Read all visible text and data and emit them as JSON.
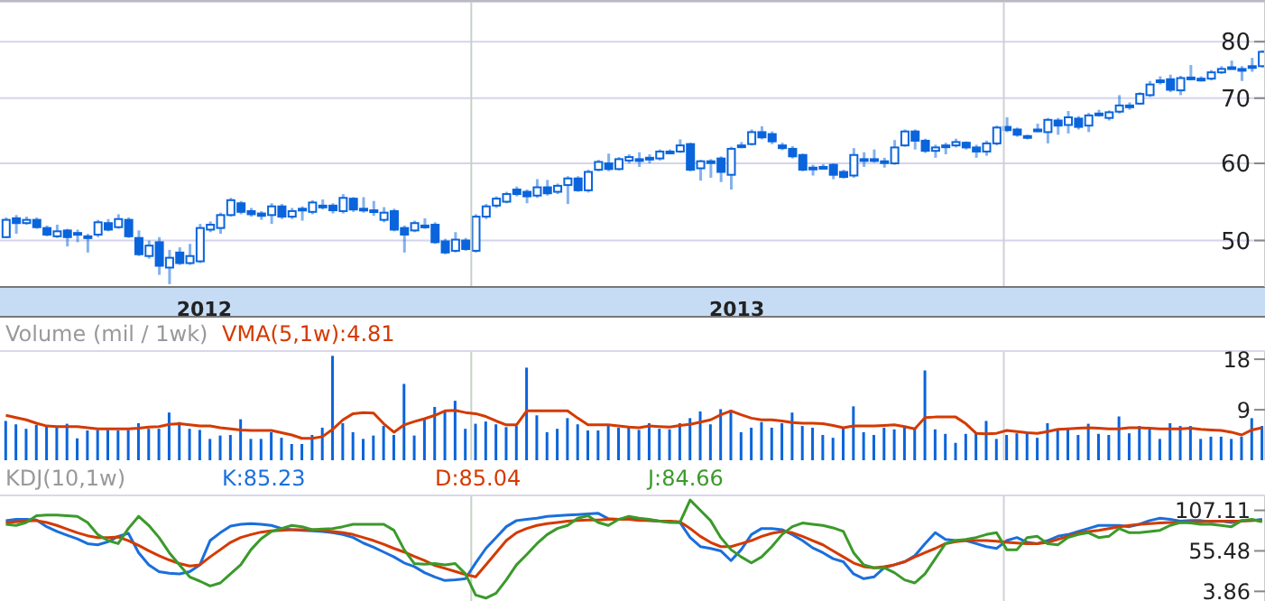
{
  "chart_data": [
    {
      "type": "candlestick",
      "color": "#0a64dc",
      "log": "y",
      "ylim": [
        44.8,
        87.9
      ],
      "yticks": [
        50,
        60,
        70,
        80
      ],
      "xlim": [
        "2012-02-13",
        "2014-06-29"
      ],
      "xticks": [
        {
          "value": "2012-07-02",
          "label": "2012"
        },
        {
          "value": "2013-07-02",
          "label": "2013"
        }
      ],
      "grid": "y",
      "ref_lines": [
        {
          "axis": "x",
          "value": "2013-01-01",
          "label": null,
          "color": "#c8d0c8"
        },
        {
          "axis": "x",
          "value": "2014-01-01",
          "label": null,
          "color": "#d0d0d8"
        }
      ],
      "x": [
        "2012-02-17",
        "2012-02-24",
        "2012-03-02",
        "2012-03-09",
        "2012-03-16",
        "2012-03-23",
        "2012-03-30",
        "2012-04-06",
        "2012-04-13",
        "2012-04-20",
        "2012-04-27",
        "2012-05-04",
        "2012-05-11",
        "2012-05-18",
        "2012-05-25",
        "2012-06-01",
        "2012-06-08",
        "2012-06-15",
        "2012-06-22",
        "2012-06-29",
        "2012-07-06",
        "2012-07-13",
        "2012-07-20",
        "2012-07-27",
        "2012-08-03",
        "2012-08-10",
        "2012-08-17",
        "2012-08-24",
        "2012-08-31",
        "2012-09-07",
        "2012-09-14",
        "2012-09-21",
        "2012-09-28",
        "2012-10-05",
        "2012-10-12",
        "2012-10-19",
        "2012-10-26",
        "2012-11-02",
        "2012-11-09",
        "2012-11-16",
        "2012-11-23",
        "2012-11-30",
        "2012-12-07",
        "2012-12-14",
        "2012-12-21",
        "2012-12-28",
        "2013-01-04",
        "2013-01-11",
        "2013-01-18",
        "2013-01-25",
        "2013-02-01",
        "2013-02-08",
        "2013-02-15",
        "2013-02-22",
        "2013-03-01",
        "2013-03-08",
        "2013-03-15",
        "2013-03-22",
        "2013-03-29",
        "2013-04-05",
        "2013-04-12",
        "2013-04-19",
        "2013-04-26",
        "2013-05-03",
        "2013-05-10",
        "2013-05-17",
        "2013-05-24",
        "2013-05-31",
        "2013-06-07",
        "2013-06-14",
        "2013-06-21",
        "2013-06-28",
        "2013-07-05",
        "2013-07-12",
        "2013-07-19",
        "2013-07-26",
        "2013-08-02",
        "2013-08-09",
        "2013-08-16",
        "2013-08-23",
        "2013-08-30",
        "2013-09-06",
        "2013-09-13",
        "2013-09-20",
        "2013-09-27",
        "2013-10-04",
        "2013-10-11",
        "2013-10-18",
        "2013-10-25",
        "2013-11-01",
        "2013-11-08",
        "2013-11-15",
        "2013-11-22",
        "2013-11-29",
        "2013-12-06",
        "2013-12-13",
        "2013-12-20",
        "2013-12-27",
        "2014-01-03",
        "2014-01-10",
        "2014-01-17",
        "2014-01-24",
        "2014-01-31",
        "2014-02-07",
        "2014-02-14",
        "2014-02-21",
        "2014-02-28",
        "2014-03-07",
        "2014-03-14",
        "2014-03-21",
        "2014-03-28",
        "2014-04-04",
        "2014-04-11",
        "2014-04-18",
        "2014-04-25",
        "2014-05-02",
        "2014-05-09",
        "2014-05-16",
        "2014-05-23",
        "2014-05-30",
        "2014-06-06",
        "2014-06-13",
        "2014-06-20",
        "2014-06-27"
      ],
      "ohlc": [
        [
          50.4,
          52.8,
          50.3,
          52.5
        ],
        [
          52.7,
          53.1,
          50.8,
          52.1
        ],
        [
          52.1,
          52.9,
          51.9,
          52.5
        ],
        [
          52.5,
          52.8,
          51.4,
          51.6
        ],
        [
          51.5,
          51.8,
          50.5,
          50.7
        ],
        [
          50.5,
          51.9,
          50.3,
          51.1
        ],
        [
          51.2,
          51.4,
          49.3,
          50.4
        ],
        [
          50.8,
          51.3,
          49.8,
          50.9
        ],
        [
          50.5,
          50.8,
          48.6,
          50.3
        ],
        [
          50.7,
          52.5,
          50.4,
          52.2
        ],
        [
          52.1,
          52.6,
          51.1,
          51.3
        ],
        [
          51.6,
          53.2,
          51.4,
          52.6
        ],
        [
          52.5,
          52.8,
          50.3,
          50.5
        ],
        [
          50.3,
          51.2,
          48.2,
          48.4
        ],
        [
          48.2,
          50.0,
          47.9,
          49.4
        ],
        [
          49.8,
          50.4,
          46.1,
          47.1
        ],
        [
          46.9,
          48.9,
          45.1,
          48.0
        ],
        [
          48.6,
          49.2,
          47.2,
          47.4
        ],
        [
          47.4,
          49.6,
          47.2,
          48.2
        ],
        [
          47.6,
          52.0,
          47.4,
          51.5
        ],
        [
          51.3,
          52.3,
          51.0,
          51.9
        ],
        [
          51.5,
          53.4,
          50.8,
          53.1
        ],
        [
          53.1,
          55.3,
          52.9,
          55.0
        ],
        [
          54.6,
          54.9,
          53.2,
          53.5
        ],
        [
          53.6,
          54.0,
          52.9,
          53.2
        ],
        [
          53.3,
          53.6,
          52.5,
          53.0
        ],
        [
          53.1,
          54.6,
          52.0,
          54.2
        ],
        [
          54.2,
          54.5,
          52.6,
          52.9
        ],
        [
          52.9,
          54.0,
          52.6,
          53.6
        ],
        [
          53.8,
          54.2,
          52.4,
          53.9
        ],
        [
          53.5,
          55.0,
          53.2,
          54.7
        ],
        [
          54.3,
          55.1,
          53.8,
          54.1
        ],
        [
          54.3,
          54.6,
          53.3,
          53.7
        ],
        [
          53.6,
          55.8,
          53.3,
          55.3
        ],
        [
          55.2,
          55.4,
          53.5,
          53.8
        ],
        [
          53.8,
          55.4,
          53.4,
          53.9
        ],
        [
          53.6,
          54.9,
          53.0,
          53.7
        ],
        [
          52.5,
          54.1,
          52.2,
          53.4
        ],
        [
          53.6,
          53.9,
          51.1,
          51.3
        ],
        [
          51.5,
          51.8,
          48.6,
          50.7
        ],
        [
          51.2,
          52.4,
          51.0,
          52.1
        ],
        [
          51.8,
          52.7,
          51.4,
          51.7
        ],
        [
          51.9,
          52.2,
          49.6,
          49.8
        ],
        [
          49.9,
          50.2,
          48.4,
          48.6
        ],
        [
          48.8,
          51.0,
          48.6,
          50.1
        ],
        [
          50.0,
          50.3,
          48.8,
          49.0
        ],
        [
          48.8,
          53.2,
          48.6,
          52.9
        ],
        [
          52.9,
          54.5,
          52.6,
          54.2
        ],
        [
          54.3,
          55.5,
          54.0,
          55.2
        ],
        [
          54.8,
          56.1,
          54.6,
          55.8
        ],
        [
          56.4,
          56.8,
          55.5,
          55.8
        ],
        [
          56.1,
          56.4,
          54.6,
          55.5
        ],
        [
          55.6,
          57.8,
          55.3,
          56.7
        ],
        [
          56.7,
          57.7,
          55.6,
          55.9
        ],
        [
          56.1,
          57.2,
          55.8,
          56.9
        ],
        [
          57.0,
          58.2,
          54.5,
          57.9
        ],
        [
          57.9,
          58.2,
          56.1,
          56.3
        ],
        [
          56.3,
          59.1,
          56.0,
          58.8
        ],
        [
          59.1,
          60.5,
          58.9,
          60.2
        ],
        [
          60.0,
          61.4,
          58.9,
          59.2
        ],
        [
          59.2,
          60.9,
          59.0,
          60.6
        ],
        [
          60.4,
          61.3,
          60.0,
          60.9
        ],
        [
          60.4,
          61.6,
          59.5,
          60.6
        ],
        [
          60.7,
          61.3,
          60.0,
          60.8
        ],
        [
          60.7,
          62.0,
          60.4,
          61.7
        ],
        [
          61.6,
          62.0,
          61.3,
          61.7
        ],
        [
          61.7,
          63.5,
          61.5,
          62.6
        ],
        [
          62.8,
          63.0,
          58.9,
          59.1
        ],
        [
          59.3,
          60.5,
          57.6,
          60.3
        ],
        [
          60.2,
          60.6,
          58.0,
          60.3
        ],
        [
          60.7,
          61.0,
          57.4,
          58.8
        ],
        [
          58.4,
          62.4,
          56.4,
          62.1
        ],
        [
          62.5,
          63.1,
          62.2,
          62.6
        ],
        [
          62.8,
          65.0,
          62.6,
          64.6
        ],
        [
          64.6,
          65.5,
          63.5,
          63.8
        ],
        [
          64.3,
          64.7,
          62.8,
          63.2
        ],
        [
          62.6,
          63.0,
          61.9,
          62.2
        ],
        [
          62.1,
          62.5,
          60.7,
          61.0
        ],
        [
          61.2,
          61.4,
          58.9,
          59.1
        ],
        [
          59.4,
          59.8,
          58.3,
          59.3
        ],
        [
          59.5,
          59.9,
          59.2,
          59.4
        ],
        [
          59.8,
          60.0,
          57.8,
          58.4
        ],
        [
          58.8,
          59.1,
          57.9,
          58.1
        ],
        [
          58.3,
          62.2,
          58.0,
          61.2
        ],
        [
          60.6,
          61.6,
          59.5,
          60.5
        ],
        [
          60.4,
          62.0,
          60.1,
          60.6
        ],
        [
          60.3,
          60.8,
          59.4,
          60.3
        ],
        [
          60.0,
          63.4,
          59.8,
          62.3
        ],
        [
          62.6,
          65.0,
          62.4,
          64.7
        ],
        [
          64.7,
          65.0,
          62.0,
          63.3
        ],
        [
          63.3,
          63.6,
          61.5,
          61.8
        ],
        [
          61.8,
          62.7,
          60.8,
          62.3
        ],
        [
          62.5,
          63.0,
          61.3,
          62.6
        ],
        [
          62.6,
          63.6,
          62.3,
          63.1
        ],
        [
          63.0,
          63.2,
          62.0,
          62.3
        ],
        [
          62.3,
          62.7,
          60.8,
          61.7
        ],
        [
          61.7,
          63.3,
          61.1,
          62.9
        ],
        [
          62.9,
          65.6,
          62.6,
          65.3
        ],
        [
          65.4,
          66.9,
          64.6,
          64.9
        ],
        [
          65.0,
          65.3,
          63.9,
          64.2
        ],
        [
          64.0,
          64.2,
          63.5,
          63.9
        ],
        [
          64.9,
          65.9,
          64.6,
          65.0
        ],
        [
          64.6,
          66.8,
          62.9,
          66.5
        ],
        [
          66.4,
          66.8,
          64.2,
          65.6
        ],
        [
          65.7,
          67.9,
          64.4,
          66.9
        ],
        [
          66.7,
          67.1,
          65.0,
          65.4
        ],
        [
          65.6,
          67.6,
          64.6,
          67.2
        ],
        [
          67.3,
          68.1,
          67.0,
          67.5
        ],
        [
          66.8,
          68.0,
          66.4,
          67.7
        ],
        [
          67.8,
          70.5,
          67.5,
          68.8
        ],
        [
          68.7,
          69.3,
          68.1,
          68.8
        ],
        [
          69.1,
          71.0,
          68.9,
          70.7
        ],
        [
          70.5,
          72.9,
          70.2,
          72.3
        ],
        [
          72.9,
          73.7,
          72.3,
          73.0
        ],
        [
          73.2,
          74.0,
          71.0,
          71.4
        ],
        [
          71.3,
          73.8,
          70.5,
          73.4
        ],
        [
          73.4,
          75.7,
          73.0,
          73.5
        ],
        [
          73.2,
          73.7,
          72.8,
          73.3
        ],
        [
          73.3,
          74.8,
          73.0,
          74.4
        ],
        [
          74.4,
          75.5,
          74.1,
          75.0
        ],
        [
          75.2,
          76.5,
          74.9,
          75.3
        ],
        [
          75.0,
          75.5,
          72.9,
          74.9
        ],
        [
          75.4,
          77.0,
          74.5,
          75.5
        ],
        [
          75.5,
          78.4,
          75.2,
          78.1
        ]
      ]
    },
    {
      "type": "bar",
      "ylabel": "Volume (mil / 1wk)",
      "legend": "top left",
      "tick_labels": "y",
      "ylim": [
        0,
        19.3
      ],
      "yticks": [
        9,
        18
      ],
      "xlim": [
        "2012-02-13",
        "2014-06-29"
      ],
      "ref_lines": [
        {
          "axis": "x",
          "value": "2013-01-01",
          "label": null,
          "color": "#c8d0c8"
        },
        {
          "axis": "x",
          "value": "2014-01-01",
          "label": null,
          "color": "#d0d0d8"
        }
      ],
      "x": [
        "2012-02-17",
        "2012-02-24",
        "2012-03-02",
        "2012-03-09",
        "2012-03-16",
        "2012-03-23",
        "2012-03-30",
        "2012-04-06",
        "2012-04-13",
        "2012-04-20",
        "2012-04-27",
        "2012-05-04",
        "2012-05-11",
        "2012-05-18",
        "2012-05-25",
        "2012-06-01",
        "2012-06-08",
        "2012-06-15",
        "2012-06-22",
        "2012-06-29",
        "2012-07-06",
        "2012-07-13",
        "2012-07-20",
        "2012-07-27",
        "2012-08-03",
        "2012-08-10",
        "2012-08-17",
        "2012-08-24",
        "2012-08-31",
        "2012-09-07",
        "2012-09-14",
        "2012-09-21",
        "2012-09-28",
        "2012-10-05",
        "2012-10-12",
        "2012-10-19",
        "2012-10-26",
        "2012-11-02",
        "2012-11-09",
        "2012-11-16",
        "2012-11-23",
        "2012-11-30",
        "2012-12-07",
        "2012-12-14",
        "2012-12-21",
        "2012-12-28",
        "2013-01-04",
        "2013-01-11",
        "2013-01-18",
        "2013-01-25",
        "2013-02-01",
        "2013-02-08",
        "2013-02-15",
        "2013-02-22",
        "2013-03-01",
        "2013-03-08",
        "2013-03-15",
        "2013-03-22",
        "2013-03-29",
        "2013-04-05",
        "2013-04-12",
        "2013-04-19",
        "2013-04-26",
        "2013-05-03",
        "2013-05-10",
        "2013-05-17",
        "2013-05-24",
        "2013-05-31",
        "2013-06-07",
        "2013-06-14",
        "2013-06-21",
        "2013-06-28",
        "2013-07-05",
        "2013-07-12",
        "2013-07-19",
        "2013-07-26",
        "2013-08-02",
        "2013-08-09",
        "2013-08-16",
        "2013-08-23",
        "2013-08-30",
        "2013-09-06",
        "2013-09-13",
        "2013-09-20",
        "2013-09-27",
        "2013-10-04",
        "2013-10-11",
        "2013-10-18",
        "2013-10-25",
        "2013-11-01",
        "2013-11-08",
        "2013-11-15",
        "2013-11-22",
        "2013-11-29",
        "2013-12-06",
        "2013-12-13",
        "2013-12-20",
        "2013-12-27",
        "2014-01-03",
        "2014-01-10",
        "2014-01-17",
        "2014-01-24",
        "2014-01-31",
        "2014-02-07",
        "2014-02-14",
        "2014-02-21",
        "2014-02-28",
        "2014-03-07",
        "2014-03-14",
        "2014-03-21",
        "2014-03-28",
        "2014-04-04",
        "2014-04-11",
        "2014-04-18",
        "2014-04-25",
        "2014-05-02",
        "2014-05-09",
        "2014-05-16",
        "2014-05-23",
        "2014-05-30",
        "2014-06-06",
        "2014-06-13",
        "2014-06-20",
        "2014-06-27"
      ],
      "series": [
        {
          "type": "bar",
          "color": "#0a64dc",
          "values": [
            7.0,
            6.4,
            5.6,
            6.3,
            6.1,
            6.1,
            6.5,
            3.9,
            5.3,
            5.4,
            5.4,
            5.3,
            5.4,
            6.6,
            5.6,
            5.6,
            8.5,
            6.8,
            5.6,
            5.4,
            3.8,
            4.4,
            4.5,
            7.3,
            3.8,
            3.8,
            5.0,
            4.0,
            2.9,
            2.9,
            4.5,
            5.8,
            18.6,
            6.6,
            5.0,
            3.8,
            4.4,
            6.1,
            4.5,
            13.6,
            4.4,
            7.4,
            9.5,
            8.8,
            10.6,
            5.6,
            6.5,
            6.9,
            6.4,
            5.9,
            6.1,
            16.5,
            8.0,
            5.0,
            5.6,
            7.5,
            6.4,
            5.3,
            5.3,
            6.3,
            5.8,
            5.8,
            5.4,
            6.6,
            5.6,
            5.5,
            6.6,
            7.5,
            8.7,
            6.4,
            9.1,
            9.0,
            5.0,
            5.8,
            6.8,
            5.8,
            6.6,
            8.5,
            6.1,
            5.8,
            4.5,
            4.0,
            5.8,
            9.6,
            5.0,
            4.5,
            5.8,
            5.5,
            6.1,
            5.5,
            16.0,
            5.5,
            4.7,
            3.1,
            4.7,
            5.0,
            7.0,
            3.8,
            4.5,
            4.8,
            4.8,
            4.0,
            6.6,
            5.5,
            5.8,
            4.5,
            6.5,
            4.7,
            4.5,
            7.8,
            4.8,
            6.1,
            5.6,
            3.8,
            6.6,
            6.1,
            6.1,
            3.8,
            4.2,
            4.2,
            3.8,
            4.2,
            7.5,
            6.1
          ]
        },
        {
          "type": "line",
          "name": "VMA(5,1w):4.81",
          "color": "#d43a00",
          "values": [
            8.0,
            7.6,
            7.2,
            6.6,
            6.1,
            6.0,
            6.0,
            6.0,
            5.8,
            5.6,
            5.6,
            5.6,
            5.6,
            5.7,
            5.9,
            6.0,
            6.4,
            6.5,
            6.3,
            6.1,
            6.1,
            5.8,
            5.6,
            5.4,
            5.3,
            5.3,
            5.3,
            4.9,
            4.5,
            3.9,
            3.9,
            4.2,
            5.5,
            7.2,
            8.3,
            8.5,
            8.4,
            6.5,
            5.0,
            6.3,
            6.9,
            7.4,
            8.0,
            8.8,
            8.9,
            8.5,
            8.3,
            7.8,
            7.0,
            6.3,
            6.3,
            8.8,
            8.8,
            8.8,
            8.8,
            8.8,
            7.5,
            6.3,
            6.3,
            6.3,
            6.1,
            5.9,
            5.8,
            6.1,
            6.0,
            5.9,
            6.2,
            6.4,
            6.8,
            7.2,
            8.1,
            8.8,
            8.1,
            7.5,
            7.2,
            7.2,
            7.0,
            6.7,
            6.6,
            6.6,
            6.5,
            6.2,
            5.8,
            6.1,
            6.1,
            6.1,
            6.2,
            6.3,
            6.0,
            5.6,
            7.6,
            7.7,
            7.7,
            7.7,
            6.5,
            4.8,
            4.7,
            4.8,
            5.3,
            5.1,
            4.9,
            4.8,
            5.1,
            5.5,
            5.6,
            5.7,
            5.8,
            5.7,
            5.6,
            5.6,
            5.8,
            5.8,
            5.7,
            5.6,
            5.6,
            5.6,
            5.7,
            5.5,
            5.4,
            5.3,
            5.0,
            4.5,
            5.4,
            5.8
          ]
        }
      ]
    },
    {
      "type": "line",
      "title": "KDJ(10,1w)",
      "legend": "top left",
      "tick_labels": "y",
      "ylim": [
        -10.7,
        125
      ],
      "yticks": [
        3.86,
        55.48,
        107.11
      ],
      "xlim": [
        "2012-02-13",
        "2014-06-29"
      ],
      "ref_lines": [
        {
          "axis": "x",
          "value": "2013-01-01",
          "label": null,
          "color": "#c8d0c8"
        },
        {
          "axis": "x",
          "value": "2014-01-01",
          "label": null,
          "color": "#d0d0d8"
        }
      ],
      "x": [
        "2012-02-17",
        "2012-02-24",
        "2012-03-02",
        "2012-03-09",
        "2012-03-16",
        "2012-03-23",
        "2012-03-30",
        "2012-04-06",
        "2012-04-13",
        "2012-04-20",
        "2012-04-27",
        "2012-05-04",
        "2012-05-11",
        "2012-05-18",
        "2012-05-25",
        "2012-06-01",
        "2012-06-08",
        "2012-06-15",
        "2012-06-22",
        "2012-06-29",
        "2012-07-06",
        "2012-07-13",
        "2012-07-20",
        "2012-07-27",
        "2012-08-03",
        "2012-08-10",
        "2012-08-17",
        "2012-08-24",
        "2012-08-31",
        "2012-09-07",
        "2012-09-14",
        "2012-09-21",
        "2012-09-28",
        "2012-10-05",
        "2012-10-12",
        "2012-10-19",
        "2012-10-26",
        "2012-11-02",
        "2012-11-09",
        "2012-11-16",
        "2012-11-23",
        "2012-11-30",
        "2012-12-07",
        "2012-12-14",
        "2012-12-21",
        "2012-12-28",
        "2013-01-04",
        "2013-01-11",
        "2013-01-18",
        "2013-01-25",
        "2013-02-01",
        "2013-02-08",
        "2013-02-15",
        "2013-02-22",
        "2013-03-01",
        "2013-03-08",
        "2013-03-15",
        "2013-03-22",
        "2013-03-29",
        "2013-04-05",
        "2013-04-12",
        "2013-04-19",
        "2013-04-26",
        "2013-05-03",
        "2013-05-10",
        "2013-05-17",
        "2013-05-24",
        "2013-05-31",
        "2013-06-07",
        "2013-06-14",
        "2013-06-21",
        "2013-06-28",
        "2013-07-05",
        "2013-07-12",
        "2013-07-19",
        "2013-07-26",
        "2013-08-02",
        "2013-08-09",
        "2013-08-16",
        "2013-08-23",
        "2013-08-30",
        "2013-09-06",
        "2013-09-13",
        "2013-09-20",
        "2013-09-27",
        "2013-10-04",
        "2013-10-11",
        "2013-10-18",
        "2013-10-25",
        "2013-11-01",
        "2013-11-08",
        "2013-11-15",
        "2013-11-22",
        "2013-11-29",
        "2013-12-06",
        "2013-12-13",
        "2013-12-20",
        "2013-12-27",
        "2014-01-03",
        "2014-01-10",
        "2014-01-17",
        "2014-01-24",
        "2014-01-31",
        "2014-02-07",
        "2014-02-14",
        "2014-02-21",
        "2014-02-28",
        "2014-03-07",
        "2014-03-14",
        "2014-03-21",
        "2014-03-28",
        "2014-04-04",
        "2014-04-11",
        "2014-04-18",
        "2014-04-25",
        "2014-05-02",
        "2014-05-09",
        "2014-05-16",
        "2014-05-23",
        "2014-05-30",
        "2014-06-06",
        "2014-06-13",
        "2014-06-20",
        "2014-06-27"
      ],
      "series": [
        {
          "name": "K:85.23",
          "color": "#1a6fdc",
          "values": [
            94.1,
            95.6,
            95.6,
            94.8,
            86.3,
            80.2,
            75.5,
            70.9,
            64.7,
            63.2,
            67.1,
            74.0,
            77.9,
            53.2,
            37.7,
            29.0,
            26.9,
            26.2,
            29.0,
            37.7,
            68.6,
            78.6,
            87.1,
            89.4,
            90.2,
            89.4,
            87.9,
            84.0,
            82.5,
            81.7,
            81.0,
            80.2,
            78.6,
            76.3,
            72.5,
            65.5,
            60.1,
            54.0,
            47.8,
            40.1,
            35.4,
            27.7,
            22.3,
            17.7,
            18.5,
            20.0,
            40.1,
            58.6,
            72.5,
            86.3,
            94.1,
            95.6,
            97.1,
            99.5,
            100.2,
            101.0,
            101.8,
            102.5,
            103.3,
            96.4,
            95.6,
            97.1,
            94.8,
            94.1,
            93.3,
            92.5,
            91.7,
            72.5,
            60.9,
            58.6,
            55.5,
            43.1,
            57.0,
            76.3,
            84.0,
            84.0,
            82.5,
            76.3,
            68.6,
            59.3,
            53.2,
            45.5,
            41.6,
            26.2,
            20.0,
            22.3,
            33.9,
            37.7,
            41.6,
            49.3,
            64.7,
            78.6,
            70.1,
            68.6,
            68.6,
            64.7,
            60.9,
            58.6,
            68.6,
            72.5,
            66.3,
            64.7,
            68.6,
            74.0,
            76.3,
            80.2,
            84.0,
            87.9,
            87.9,
            87.9,
            86.3,
            89.4,
            94.1,
            97.1,
            95.6,
            93.3,
            94.1,
            94.1,
            92.5,
            93.3,
            91.7,
            94.1,
            94.1,
            95.6
          ]
        },
        {
          "name": "D:85.04",
          "color": "#d43a00",
          "values": [
            91.7,
            92.5,
            93.3,
            94.1,
            91.7,
            87.9,
            83.2,
            78.6,
            74.8,
            72.5,
            72.5,
            73.2,
            68.6,
            62.4,
            55.5,
            49.3,
            43.9,
            39.3,
            36.2,
            37.7,
            47.8,
            57.0,
            66.3,
            72.5,
            76.3,
            79.4,
            81.0,
            81.7,
            82.5,
            82.5,
            82.5,
            81.7,
            80.2,
            78.6,
            76.3,
            72.5,
            68.6,
            64.0,
            58.6,
            54.0,
            48.5,
            43.1,
            36.9,
            33.1,
            29.2,
            25.4,
            22.3,
            37.7,
            53.2,
            68.6,
            78.6,
            84.0,
            87.9,
            90.2,
            91.7,
            93.3,
            94.1,
            94.8,
            94.8,
            95.6,
            95.6,
            95.6,
            94.1,
            94.1,
            93.3,
            93.3,
            92.5,
            84.0,
            74.0,
            66.3,
            60.9,
            60.9,
            64.7,
            68.6,
            74.0,
            77.9,
            80.2,
            78.6,
            74.0,
            68.6,
            63.2,
            55.5,
            47.8,
            40.1,
            35.4,
            33.9,
            35.4,
            37.7,
            41.6,
            47.8,
            53.2,
            58.6,
            64.7,
            67.1,
            68.6,
            68.6,
            68.6,
            67.8,
            66.3,
            65.5,
            64.7,
            64.7,
            66.3,
            70.1,
            74.0,
            77.9,
            80.2,
            81.7,
            84.0,
            86.3,
            87.9,
            89.4,
            90.2,
            91.0,
            91.7,
            91.7,
            92.5,
            92.5,
            93.3,
            93.3,
            93.3,
            93.3,
            94.1,
            94.1
          ]
        },
        {
          "name": "J:84.66",
          "color": "#3a9a2a",
          "values": [
            89.4,
            87.9,
            91.7,
            100.2,
            101.0,
            101.0,
            100.2,
            99.5,
            91.7,
            76.3,
            68.6,
            64.7,
            84.0,
            99.5,
            87.9,
            72.5,
            53.2,
            37.7,
            22.3,
            16.9,
            10.7,
            14.6,
            26.2,
            37.7,
            57.0,
            70.9,
            80.2,
            84.0,
            87.9,
            86.3,
            82.5,
            83.2,
            84.0,
            86.3,
            89.4,
            89.4,
            89.4,
            89.4,
            81.7,
            57.0,
            39.3,
            38.5,
            39.3,
            37.7,
            39.3,
            26.2,
            -0.8,
            -4.7,
            1.5,
            18.5,
            37.7,
            50.9,
            64.7,
            76.3,
            84.0,
            87.9,
            97.1,
            100.2,
            91.7,
            87.9,
            95.6,
            99.5,
            97.1,
            95.6,
            93.3,
            91.7,
            91.7,
            120.3,
            107.2,
            94.1,
            72.5,
            57.0,
            47.8,
            40.1,
            47.8,
            60.9,
            76.3,
            86.3,
            91.0,
            89.4,
            87.9,
            84.8,
            80.2,
            53.2,
            37.7,
            33.9,
            33.9,
            27.7,
            18.5,
            14.6,
            26.2,
            45.5,
            64.7,
            68.6,
            70.1,
            72.5,
            76.3,
            78.6,
            57.0,
            57.0,
            72.5,
            74.0,
            64.7,
            63.2,
            72.5,
            76.3,
            78.6,
            72.5,
            74.0,
            84.0,
            78.6,
            78.6,
            80.2,
            81.7,
            87.9,
            91.7,
            91.0,
            89.4,
            89.4,
            87.9,
            86.3,
            94.1,
            95.6,
            92.5
          ]
        }
      ]
    }
  ]
}
